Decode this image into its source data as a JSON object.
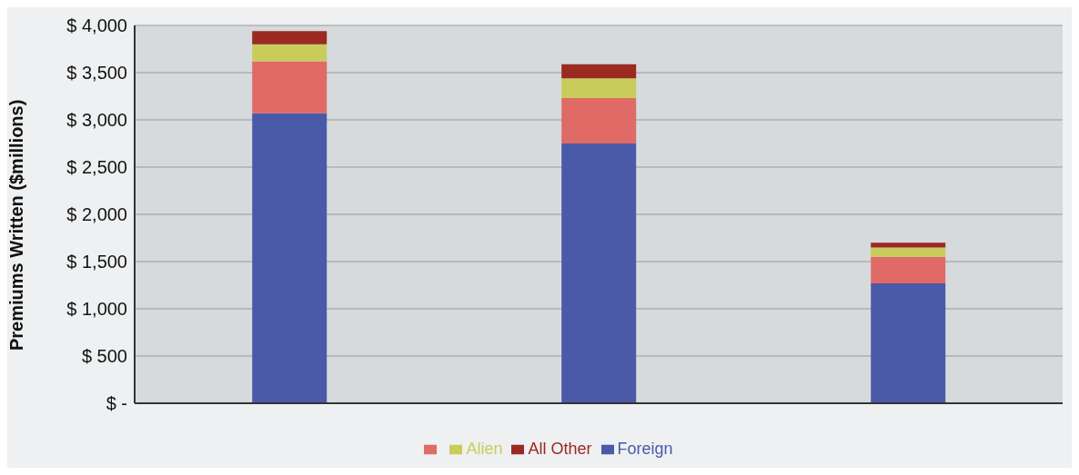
{
  "chart_data": {
    "type": "bar",
    "stacked": true,
    "ylabel": "Premiums Written ($millions)",
    "categories": [
      null,
      null,
      null
    ],
    "series": [
      {
        "name": "Foreign",
        "color": "#4a5aa8",
        "values": [
          3070,
          2750,
          1270
        ]
      },
      {
        "color": "#e06a66",
        "values": [
          550,
          480,
          280
        ]
      },
      {
        "name": "Alien",
        "color": "#c8cc5a",
        "values": [
          180,
          210,
          100
        ]
      },
      {
        "name": "All Other",
        "color": "#9a2a22",
        "values": [
          140,
          150,
          50
        ]
      }
    ],
    "ylim": [
      0,
      4000
    ],
    "yticks": [
      {
        "value": 0,
        "label": "$ -"
      },
      {
        "value": 500,
        "label": "$ 500"
      },
      {
        "value": 1000,
        "label": "$ 1,000"
      },
      {
        "value": 1500,
        "label": "$ 1,500"
      },
      {
        "value": 2000,
        "label": "$ 2,000"
      },
      {
        "value": 2500,
        "label": "$ 2,500"
      },
      {
        "value": 3000,
        "label": "$ 3,000"
      },
      {
        "value": 3500,
        "label": "$ 3,500"
      },
      {
        "value": 4000,
        "label": "$ 4,000"
      }
    ],
    "grid": "y",
    "legend": "bottom"
  }
}
